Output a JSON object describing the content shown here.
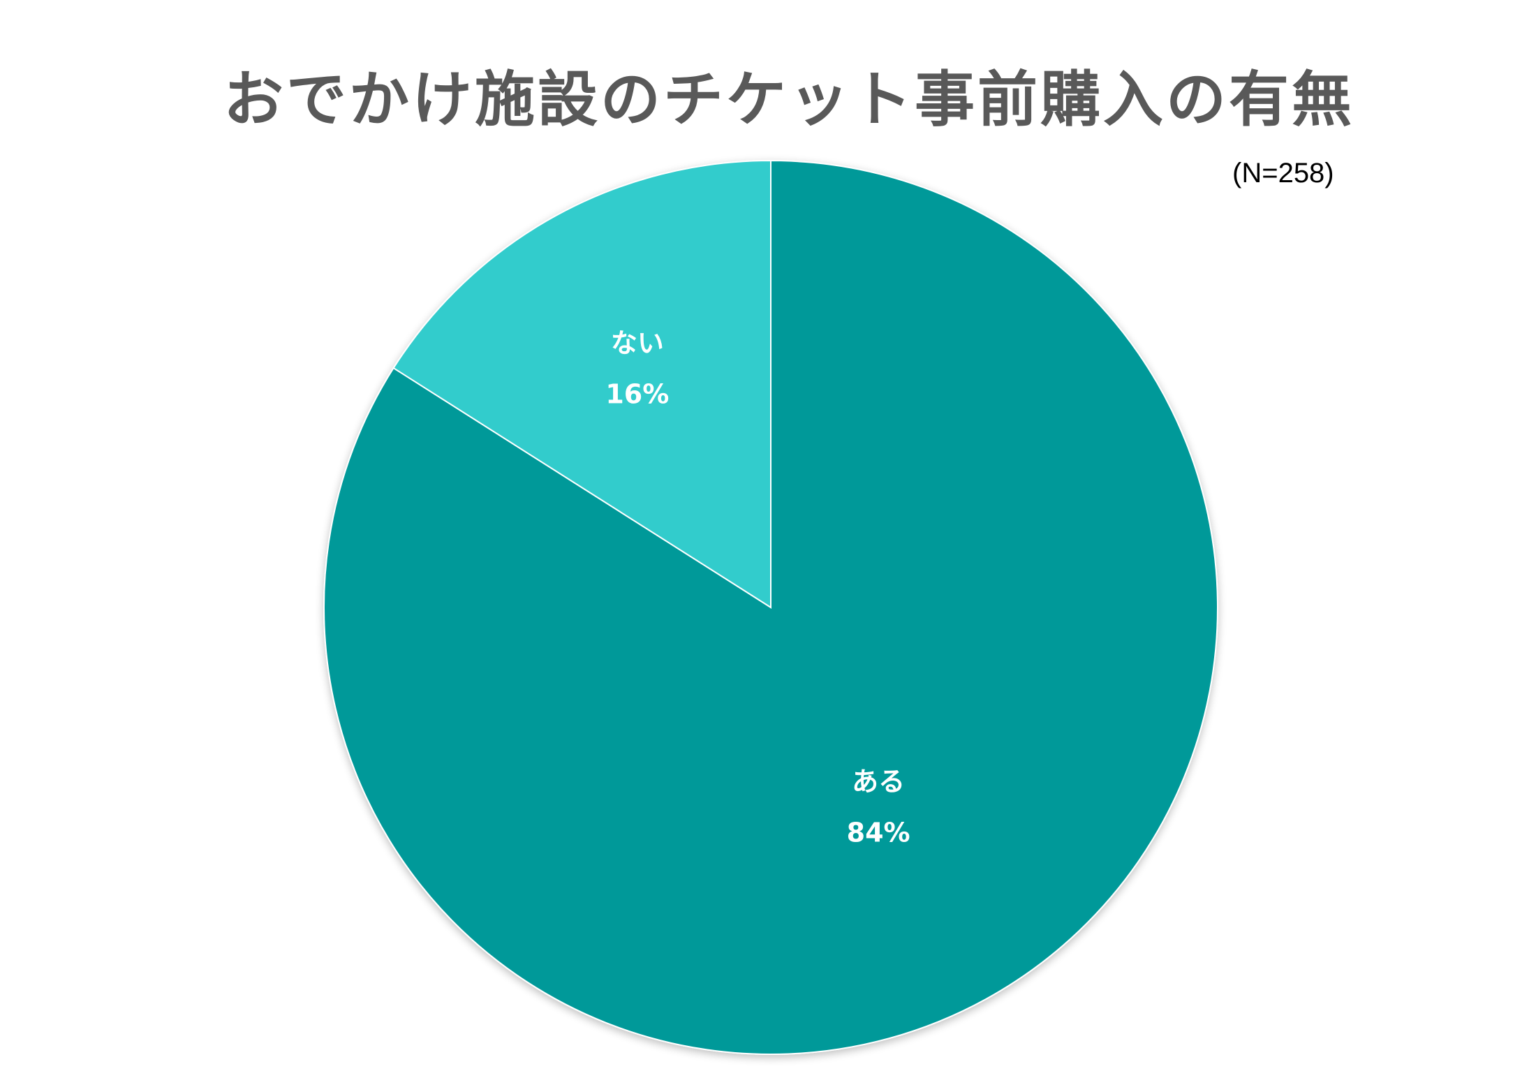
{
  "chart_data": {
    "type": "pie",
    "title": "おでかけ施設のチケット事前購入の有無",
    "note": "(N=258)",
    "categories": [
      "ある",
      "ない"
    ],
    "values": [
      84,
      16
    ],
    "labels": [
      "84%",
      "16%"
    ],
    "colors": [
      "#009999",
      "#33CCCC"
    ],
    "start_angle": "12 o'clock",
    "direction": "clockwise",
    "legend": "none",
    "data_labels": "category and percentage inside slices"
  }
}
